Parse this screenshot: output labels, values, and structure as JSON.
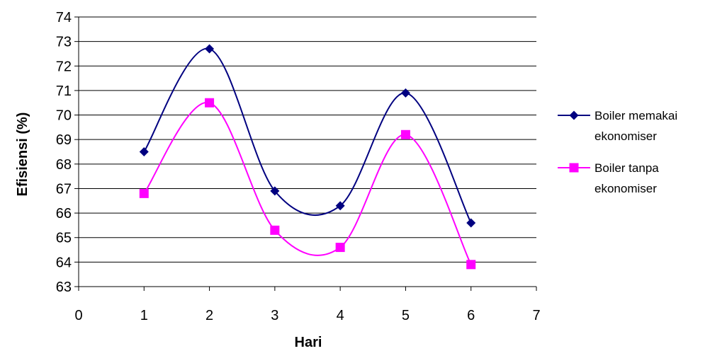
{
  "chart_data": {
    "type": "scatter",
    "xlabel": "Hari",
    "ylabel": "Efisiensi (%)",
    "xlim": [
      0,
      7
    ],
    "ylim": [
      63,
      74
    ],
    "xticks": [
      "0",
      "1",
      "2",
      "3",
      "4",
      "5",
      "6",
      "7"
    ],
    "yticks": [
      "63",
      "64",
      "65",
      "66",
      "67",
      "68",
      "69",
      "70",
      "71",
      "72",
      "73",
      "74"
    ],
    "grid": "horizontal",
    "smooth": true,
    "legend_position": "right",
    "series": [
      {
        "legend_lines": [
          "Boiler memakai",
          "ekonomiser"
        ],
        "color": "#000080",
        "marker": "diamond",
        "x": [
          1,
          2,
          3,
          4,
          5,
          6
        ],
        "y": [
          68.5,
          72.7,
          66.9,
          66.3,
          70.9,
          65.6
        ]
      },
      {
        "legend_lines": [
          "Boiler tanpa",
          "ekonomiser"
        ],
        "color": "#ff00ff",
        "marker": "square",
        "x": [
          1,
          2,
          3,
          4,
          5,
          6
        ],
        "y": [
          66.8,
          70.5,
          65.3,
          64.6,
          69.2,
          63.9
        ]
      }
    ]
  }
}
